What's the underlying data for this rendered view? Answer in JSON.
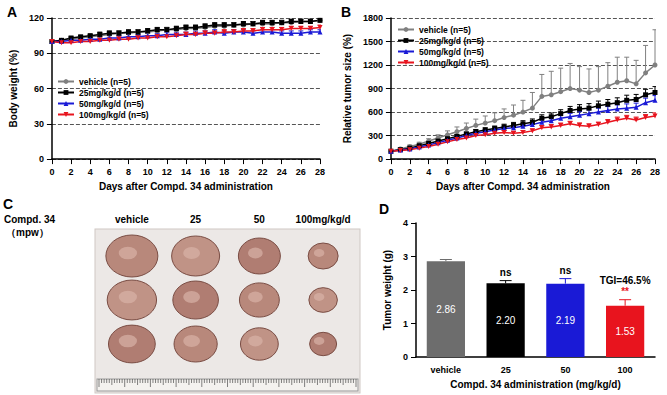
{
  "chart_data": [
    {
      "type": "line",
      "title": "A",
      "xlabel": "Days after Compd. 34 administration",
      "ylabel": "Body weight (%)",
      "x": [
        0,
        1,
        2,
        3,
        4,
        5,
        6,
        7,
        8,
        9,
        10,
        11,
        12,
        13,
        14,
        15,
        16,
        17,
        18,
        19,
        20,
        21,
        22,
        23,
        24,
        25,
        26,
        27,
        28
      ],
      "xlim": [
        0,
        28
      ],
      "xticks": [
        0,
        2,
        4,
        6,
        8,
        10,
        12,
        14,
        16,
        18,
        20,
        22,
        24,
        26,
        28
      ],
      "ylim": [
        0,
        120
      ],
      "yticks": [
        0,
        30,
        60,
        90,
        120
      ],
      "grid": true,
      "legend": "west",
      "series": [
        {
          "name": "vehicle (n=5)",
          "color": "#808080",
          "marker": "circle",
          "values": [
            100,
            101,
            102,
            103,
            104,
            105,
            106,
            107,
            107,
            108,
            108,
            109,
            110,
            110,
            111,
            111,
            112,
            113,
            113,
            114,
            114,
            115,
            115,
            115,
            116,
            116,
            117,
            117,
            118
          ],
          "errors": [
            0,
            1,
            1,
            1,
            1,
            2,
            2,
            2,
            2,
            2,
            2,
            2,
            2,
            2,
            2,
            2,
            2,
            2,
            2,
            2,
            2,
            2,
            2,
            2,
            2,
            2,
            2,
            2,
            2
          ]
        },
        {
          "name": "25mg/kg/d (n=5)",
          "color": "#000000",
          "marker": "square",
          "values": [
            100,
            101,
            103,
            104,
            105,
            106,
            107,
            107,
            108,
            108,
            109,
            110,
            110,
            111,
            112,
            112,
            113,
            114,
            114,
            114,
            115,
            115,
            116,
            116,
            116,
            117,
            117,
            117,
            118
          ],
          "errors": [
            0,
            1,
            1,
            1,
            1,
            2,
            2,
            2,
            2,
            2,
            2,
            2,
            2,
            2,
            2,
            2,
            2,
            2,
            2,
            2,
            2,
            2,
            2,
            2,
            2,
            2,
            2,
            2,
            2
          ]
        },
        {
          "name": "50mg/kg/d (n=5)",
          "color": "#1a1ad6",
          "marker": "triangle",
          "values": [
            100,
            100,
            101,
            101,
            102,
            102,
            103,
            103,
            104,
            104,
            105,
            105,
            106,
            106,
            106,
            107,
            107,
            108,
            107,
            108,
            108,
            107,
            108,
            108,
            107,
            107,
            107,
            108,
            108
          ],
          "errors": [
            0,
            1,
            1,
            1,
            1,
            2,
            2,
            2,
            2,
            2,
            2,
            2,
            2,
            2,
            2,
            2,
            2,
            2,
            2,
            2,
            2,
            2,
            2,
            2,
            2,
            2,
            2,
            2,
            2
          ]
        },
        {
          "name": "100mg/kg/d (n=5)",
          "color": "#e8141e",
          "marker": "triangle_down",
          "values": [
            100,
            99,
            99,
            100,
            100,
            101,
            101,
            102,
            102,
            103,
            103,
            104,
            104,
            105,
            106,
            106,
            107,
            107,
            108,
            108,
            109,
            109,
            110,
            110,
            110,
            111,
            111,
            111,
            112
          ],
          "errors": [
            0,
            1,
            1,
            1,
            1,
            2,
            2,
            2,
            2,
            2,
            2,
            2,
            2,
            2,
            2,
            2,
            2,
            2,
            2,
            2,
            2,
            2,
            2,
            2,
            2,
            2,
            2,
            2,
            2
          ]
        }
      ]
    },
    {
      "type": "line",
      "title": "B",
      "xlabel": "Days after Compd. 34 administration",
      "ylabel": "Relative tumor size (%)",
      "x": [
        0,
        1,
        2,
        3,
        4,
        5,
        6,
        7,
        8,
        9,
        10,
        11,
        12,
        13,
        14,
        15,
        16,
        17,
        18,
        19,
        20,
        21,
        22,
        23,
        24,
        25,
        26,
        27,
        28
      ],
      "xlim": [
        0,
        28
      ],
      "xticks": [
        0,
        2,
        4,
        6,
        8,
        10,
        12,
        14,
        16,
        18,
        20,
        22,
        24,
        26,
        28
      ],
      "ylim": [
        0,
        1800
      ],
      "yticks": [
        0,
        300,
        600,
        900,
        1200,
        1500,
        1800
      ],
      "grid": true,
      "legend": "northwest",
      "series": [
        {
          "name": "vehicle (n=5)",
          "color": "#808080",
          "marker": "circle",
          "values": [
            100,
            130,
            160,
            190,
            230,
            270,
            310,
            350,
            390,
            430,
            460,
            490,
            530,
            560,
            600,
            650,
            800,
            820,
            860,
            900,
            880,
            850,
            880,
            930,
            980,
            1000,
            960,
            1100,
            1200
          ],
          "errors": [
            10,
            15,
            20,
            25,
            30,
            40,
            50,
            60,
            70,
            80,
            90,
            100,
            110,
            130,
            150,
            200,
            280,
            300,
            300,
            320,
            300,
            300,
            300,
            300,
            320,
            300,
            300,
            350,
            450
          ]
        },
        {
          "name": "25mg/kg/d (n=5)",
          "color": "#000000",
          "marker": "square",
          "values": [
            100,
            120,
            140,
            170,
            200,
            230,
            260,
            290,
            320,
            350,
            370,
            390,
            410,
            430,
            450,
            470,
            520,
            540,
            580,
            620,
            640,
            650,
            680,
            700,
            720,
            750,
            760,
            820,
            850
          ],
          "errors": [
            5,
            8,
            10,
            12,
            15,
            18,
            20,
            22,
            25,
            28,
            30,
            32,
            35,
            38,
            40,
            42,
            45,
            48,
            50,
            52,
            55,
            58,
            60,
            60,
            62,
            65,
            65,
            70,
            75
          ]
        },
        {
          "name": "50mg/kg/d (n=5)",
          "color": "#1a1ad6",
          "marker": "triangle",
          "values": [
            100,
            115,
            130,
            155,
            180,
            210,
            240,
            270,
            300,
            330,
            350,
            370,
            390,
            400,
            420,
            440,
            470,
            490,
            520,
            540,
            560,
            580,
            600,
            620,
            640,
            650,
            660,
            720,
            750
          ],
          "errors": [
            5,
            8,
            10,
            12,
            14,
            16,
            18,
            20,
            22,
            24,
            26,
            28,
            30,
            32,
            34,
            36,
            38,
            40,
            42,
            44,
            46,
            48,
            50,
            50,
            52,
            54,
            54,
            58,
            60
          ]
        },
        {
          "name": "100mg/kg/d (n=5)",
          "color": "#e8141e",
          "marker": "triangle_down",
          "values": [
            100,
            110,
            120,
            140,
            160,
            190,
            220,
            250,
            270,
            300,
            310,
            330,
            340,
            330,
            340,
            360,
            400,
            410,
            430,
            450,
            430,
            420,
            440,
            470,
            500,
            520,
            500,
            530,
            550
          ],
          "errors": [
            5,
            6,
            8,
            10,
            12,
            14,
            16,
            18,
            20,
            22,
            22,
            24,
            24,
            24,
            25,
            26,
            28,
            30,
            30,
            32,
            32,
            30,
            32,
            34,
            36,
            38,
            36,
            38,
            40
          ]
        }
      ]
    },
    {
      "type": "bar",
      "title": "D",
      "xlabel": "Compd. 34 administration (mg/kg/d)",
      "ylabel": "Tumor weight (g)",
      "categories": [
        "vehicle",
        "25",
        "50",
        "100"
      ],
      "values": [
        2.86,
        2.2,
        2.19,
        1.53
      ],
      "value_labels": [
        "2.86",
        "2.20",
        "2.19",
        "1.53"
      ],
      "errors": [
        0.05,
        0.08,
        0.15,
        0.18
      ],
      "colors": [
        "#6d6d6d",
        "#000000",
        "#1a1ad6",
        "#e8141e"
      ],
      "ylim": [
        0,
        4
      ],
      "yticks": [
        0,
        1,
        2,
        3,
        4
      ],
      "grid": false,
      "data_labels": true,
      "annotations": [
        {
          "text": "ns",
          "category": "25"
        },
        {
          "text": "ns",
          "category": "50"
        },
        {
          "text": "**",
          "category": "100",
          "color": "#e8141e"
        },
        {
          "text": "TGI=46.5%",
          "category": "100"
        }
      ]
    }
  ],
  "photo": {
    "title": "C",
    "label": "Compd. 34",
    "sublabel": "（mpw）",
    "columns": [
      "vehicle",
      "25",
      "50",
      "100mg/kg/d"
    ]
  }
}
